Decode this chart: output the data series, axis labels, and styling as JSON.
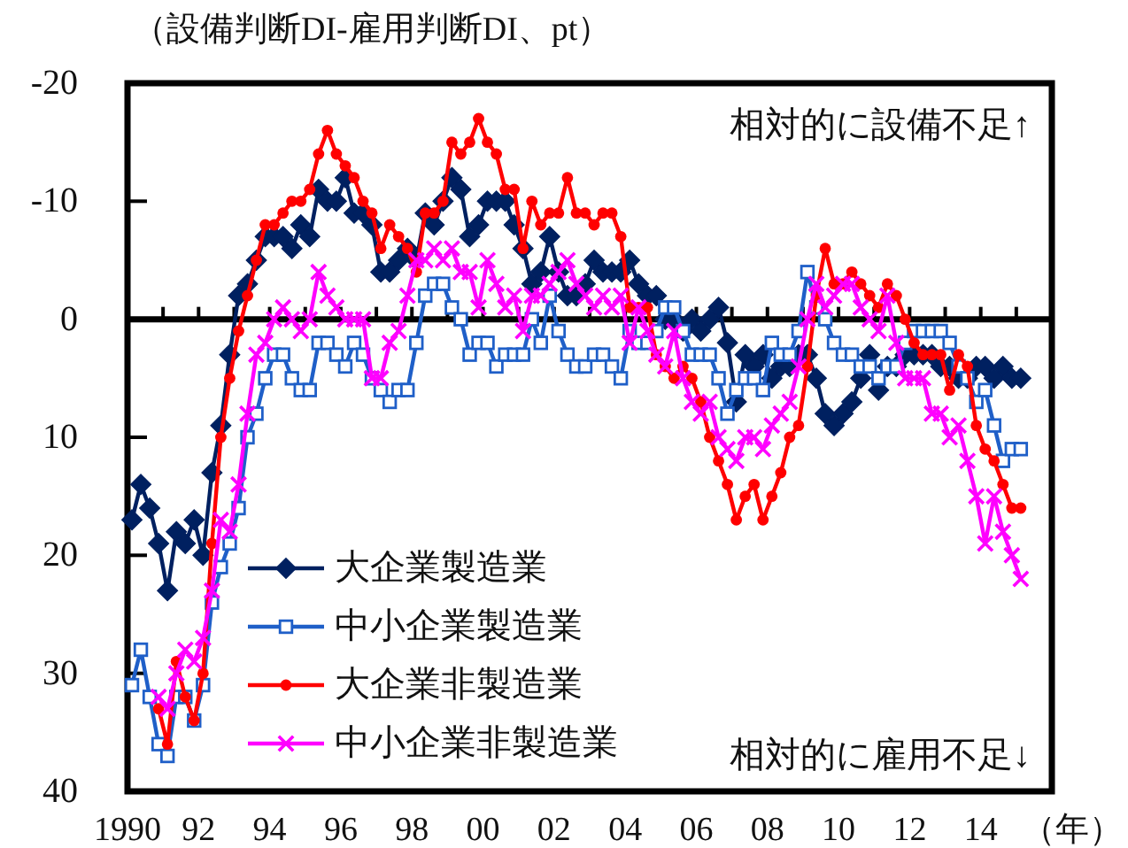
{
  "chart_data": {
    "type": "line",
    "xlabel": "（年）",
    "ylabel": "（設備判断DI-雇用判断DI、pt）",
    "annotations": [
      "相対的に設備不足↑",
      "相対的に雇用不足↓"
    ],
    "x": [
      1990.125,
      1990.375,
      1990.625,
      1990.875,
      1991.125,
      1991.375,
      1991.625,
      1991.875,
      1992.125,
      1992.375,
      1992.625,
      1992.875,
      1993.125,
      1993.375,
      1993.625,
      1993.875,
      1994.125,
      1994.375,
      1994.625,
      1994.875,
      1995.125,
      1995.375,
      1995.625,
      1995.875,
      1996.125,
      1996.375,
      1996.625,
      1996.875,
      1997.125,
      1997.375,
      1997.625,
      1997.875,
      1998.125,
      1998.375,
      1998.625,
      1998.875,
      1999.125,
      1999.375,
      1999.625,
      1999.875,
      2000.125,
      2000.375,
      2000.625,
      2000.875,
      2001.125,
      2001.375,
      2001.625,
      2001.875,
      2002.125,
      2002.375,
      2002.625,
      2002.875,
      2003.125,
      2003.375,
      2003.625,
      2003.875,
      2004.125,
      2004.375,
      2004.625,
      2004.875,
      2005.125,
      2005.375,
      2005.625,
      2005.875,
      2006.125,
      2006.375,
      2006.625,
      2006.875,
      2007.125,
      2007.375,
      2007.625,
      2007.875,
      2008.125,
      2008.375,
      2008.625,
      2008.875,
      2009.125,
      2009.375,
      2009.625,
      2009.875,
      2010.125,
      2010.375,
      2010.625,
      2010.875,
      2011.125,
      2011.375,
      2011.625,
      2011.875,
      2012.125,
      2012.375,
      2012.625,
      2012.875,
      2013.125,
      2013.375,
      2013.625,
      2013.875,
      2014.125,
      2014.375,
      2014.625,
      2014.875,
      2015.125
    ],
    "series": [
      {
        "name": "大企業製造業",
        "color": "#002060",
        "marker": "diamond",
        "values": [
          17,
          14,
          16,
          19,
          23,
          18,
          19,
          17,
          20,
          13,
          9,
          3,
          -2,
          -3,
          -5,
          -7,
          -7,
          -7,
          -6,
          -8,
          -7,
          -11,
          -10,
          -10,
          -12,
          -9,
          -9,
          -8,
          -4,
          -4,
          -5,
          -6,
          -5,
          -9,
          -8,
          -10,
          -12,
          -11,
          -7,
          -8,
          -10,
          -10,
          -10,
          -8,
          -6,
          -3,
          -4,
          -7,
          -4,
          -2,
          -2,
          -3,
          -5,
          -4,
          -4,
          -4,
          -5,
          -3,
          -2,
          -2,
          0,
          0,
          1,
          0,
          1,
          0,
          -1,
          2,
          7,
          3,
          4,
          3,
          5,
          4,
          4,
          3,
          3,
          5,
          8,
          9,
          8,
          7,
          5,
          3,
          6,
          4,
          4,
          3,
          3,
          3,
          3,
          4,
          4,
          5,
          5,
          4,
          4,
          5,
          4,
          5,
          5
        ]
      },
      {
        "name": "中小企業製造業",
        "color": "#1f5fc8",
        "marker": "square",
        "values": [
          31,
          28,
          32,
          36,
          37,
          32,
          32,
          34,
          31,
          24,
          21,
          19,
          16,
          10,
          8,
          5,
          3,
          3,
          5,
          6,
          6,
          2,
          2,
          3,
          4,
          2,
          3,
          5,
          6,
          7,
          6,
          6,
          2,
          -2,
          -3,
          -3,
          -1,
          0,
          3,
          2,
          2,
          4,
          3,
          3,
          3,
          0,
          2,
          -2,
          1,
          3,
          4,
          4,
          3,
          3,
          4,
          5,
          1,
          2,
          2,
          1,
          -1,
          -1,
          1,
          3,
          3,
          3,
          5,
          8,
          6,
          5,
          5,
          6,
          2,
          3,
          3,
          1,
          -4,
          -1,
          0,
          2,
          3,
          3,
          4,
          4,
          5,
          4,
          4,
          2,
          1,
          1,
          1,
          1,
          2,
          4,
          5,
          7,
          6,
          9,
          12,
          11,
          11
        ]
      },
      {
        "name": "大企業非製造業",
        "color": "#ff0000",
        "marker": "circle",
        "values": [
          null,
          null,
          null,
          33,
          36,
          29,
          32,
          34,
          30,
          19,
          10,
          5,
          1,
          -2,
          -5,
          -8,
          -8,
          -9,
          -10,
          -10,
          -11,
          -14,
          -16,
          -14,
          -13,
          -12,
          -10,
          -9,
          -6,
          -8,
          -7,
          -6,
          -4,
          -9,
          -9,
          -10,
          -15,
          -14,
          -15,
          -17,
          -15,
          -14,
          -11,
          -11,
          -6,
          -10,
          -8,
          -9,
          -9,
          -12,
          -9,
          -9,
          -8,
          -9,
          -9,
          -7,
          -1,
          -1,
          -1,
          3,
          4,
          5,
          4,
          5,
          7,
          10,
          12,
          14,
          17,
          15,
          14,
          17,
          15,
          13,
          10,
          9,
          4,
          -2,
          -6,
          -3,
          -3,
          -4,
          -3,
          -2,
          -1,
          -3,
          -2,
          0,
          2,
          3,
          3,
          3,
          6,
          3,
          4,
          9,
          11,
          12,
          14,
          16,
          16
        ]
      },
      {
        "name": "中小企業非製造業",
        "color": "#ff00ff",
        "marker": "cross",
        "values": [
          null,
          null,
          null,
          32,
          33,
          30,
          28,
          29,
          27,
          23,
          17,
          18,
          14,
          8,
          3,
          2,
          0,
          -1,
          0,
          1,
          0,
          -4,
          -2,
          -1,
          0,
          0,
          0,
          5,
          5,
          2,
          1,
          -2,
          -5,
          -5,
          -6,
          -5,
          -6,
          -4,
          -4,
          -1,
          -5,
          -3,
          -1,
          -2,
          1,
          -2,
          -2,
          -3,
          -4,
          -5,
          -3,
          -2,
          -1,
          -2,
          -1,
          -2,
          2,
          -1,
          1,
          3,
          4,
          1,
          5,
          7,
          8,
          7,
          10,
          11,
          12,
          10,
          10,
          11,
          9,
          8,
          7,
          4,
          0,
          -3,
          -1,
          -2,
          -3,
          -3,
          -1,
          0,
          1,
          -2,
          2,
          5,
          5,
          5,
          8,
          8,
          10,
          9,
          12,
          15,
          19,
          15,
          18,
          20,
          22
        ]
      }
    ],
    "xlim": [
      1990,
      2016
    ],
    "xticks": [
      {
        "value": 1990,
        "label": "1990"
      },
      {
        "value": 1991,
        "label": null
      },
      {
        "value": 1992,
        "label": "92"
      },
      {
        "value": 1993,
        "label": null
      },
      {
        "value": 1994,
        "label": "94"
      },
      {
        "value": 1995,
        "label": null
      },
      {
        "value": 1996,
        "label": "96"
      },
      {
        "value": 1997,
        "label": null
      },
      {
        "value": 1998,
        "label": "98"
      },
      {
        "value": 1999,
        "label": null
      },
      {
        "value": 2000,
        "label": "00"
      },
      {
        "value": 2001,
        "label": null
      },
      {
        "value": 2002,
        "label": "02"
      },
      {
        "value": 2003,
        "label": null
      },
      {
        "value": 2004,
        "label": "04"
      },
      {
        "value": 2005,
        "label": null
      },
      {
        "value": 2006,
        "label": "06"
      },
      {
        "value": 2007,
        "label": null
      },
      {
        "value": 2008,
        "label": "08"
      },
      {
        "value": 2009,
        "label": null
      },
      {
        "value": 2010,
        "label": "10"
      },
      {
        "value": 2011,
        "label": null
      },
      {
        "value": 2012,
        "label": "12"
      },
      {
        "value": 2013,
        "label": null
      },
      {
        "value": 2014,
        "label": "14"
      },
      {
        "value": 2015,
        "label": null
      }
    ],
    "ylim": [
      40,
      -20
    ],
    "yticks": [
      -20,
      -10,
      0,
      10,
      20,
      30,
      40
    ],
    "legend": "bottom left",
    "line_style": "solid"
  }
}
